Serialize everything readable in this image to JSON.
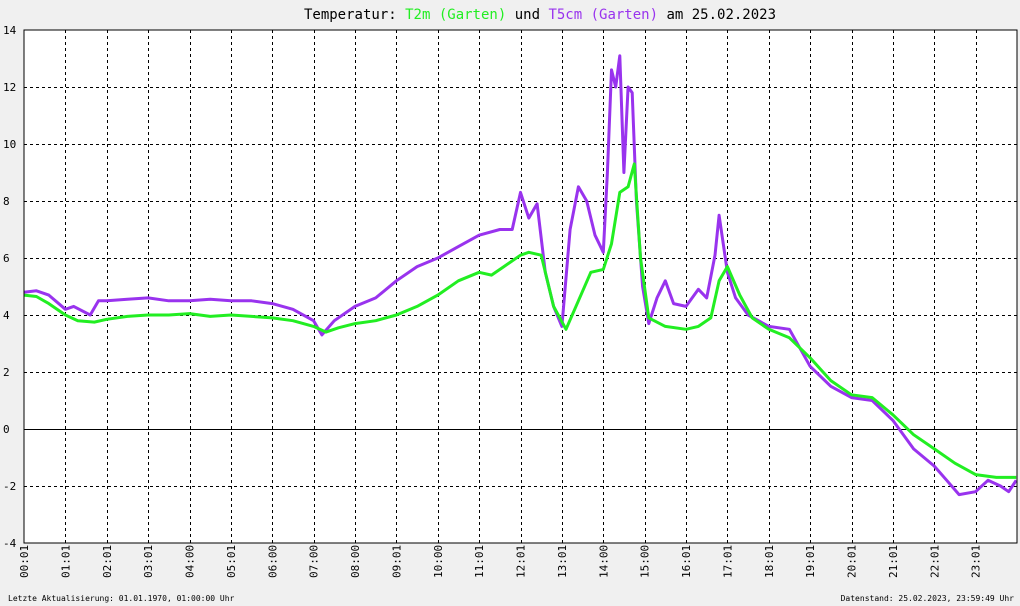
{
  "chart_data": {
    "type": "line",
    "title": {
      "prefix": "Temperatur: ",
      "series1": "T2m (Garten)",
      "middle": " und ",
      "series2": "T5cm (Garten)",
      "suffix": " am 25.02.2023"
    },
    "ylim": [
      -4,
      14
    ],
    "y_ticks": [
      "-4",
      "-2",
      "0",
      "2",
      "4",
      "6",
      "8",
      "10",
      "12",
      "14"
    ],
    "x_ticks": [
      "00:01",
      "01:01",
      "02:01",
      "03:01",
      "04:00",
      "05:01",
      "06:00",
      "07:00",
      "08:00",
      "09:01",
      "10:00",
      "11:01",
      "12:01",
      "13:01",
      "14:00",
      "15:00",
      "16:01",
      "17:01",
      "18:01",
      "19:01",
      "20:01",
      "21:01",
      "22:01",
      "23:01"
    ],
    "grid": true,
    "colors": {
      "T2m": "#22ee22",
      "T5cm": "#9933ee",
      "background": "#ffffff",
      "page": "#f0f0f0"
    },
    "series": [
      {
        "name": "T2m (Garten)",
        "points": [
          [
            0,
            4.7
          ],
          [
            0.3,
            4.65
          ],
          [
            0.6,
            4.4
          ],
          [
            1.0,
            4.0
          ],
          [
            1.3,
            3.8
          ],
          [
            1.7,
            3.75
          ],
          [
            2.0,
            3.85
          ],
          [
            2.5,
            3.95
          ],
          [
            3.0,
            4.0
          ],
          [
            3.5,
            4.0
          ],
          [
            4.0,
            4.05
          ],
          [
            4.5,
            3.95
          ],
          [
            5.0,
            4.0
          ],
          [
            5.5,
            3.95
          ],
          [
            6.0,
            3.9
          ],
          [
            6.5,
            3.8
          ],
          [
            7.0,
            3.6
          ],
          [
            7.3,
            3.4
          ],
          [
            7.6,
            3.55
          ],
          [
            8.0,
            3.7
          ],
          [
            8.5,
            3.8
          ],
          [
            9.0,
            4.0
          ],
          [
            9.5,
            4.3
          ],
          [
            10.0,
            4.7
          ],
          [
            10.5,
            5.2
          ],
          [
            11.0,
            5.5
          ],
          [
            11.3,
            5.4
          ],
          [
            11.6,
            5.7
          ],
          [
            12.0,
            6.1
          ],
          [
            12.2,
            6.2
          ],
          [
            12.5,
            6.1
          ],
          [
            12.8,
            4.3
          ],
          [
            13.1,
            3.5
          ],
          [
            13.4,
            4.5
          ],
          [
            13.7,
            5.5
          ],
          [
            14.0,
            5.6
          ],
          [
            14.2,
            6.5
          ],
          [
            14.4,
            8.3
          ],
          [
            14.6,
            8.5
          ],
          [
            14.75,
            9.3
          ],
          [
            14.9,
            6.0
          ],
          [
            15.1,
            3.9
          ],
          [
            15.5,
            3.6
          ],
          [
            16.0,
            3.5
          ],
          [
            16.3,
            3.6
          ],
          [
            16.6,
            3.9
          ],
          [
            16.8,
            5.2
          ],
          [
            17.0,
            5.7
          ],
          [
            17.3,
            4.7
          ],
          [
            17.6,
            3.9
          ],
          [
            18.0,
            3.5
          ],
          [
            18.5,
            3.2
          ],
          [
            19.0,
            2.5
          ],
          [
            19.5,
            1.7
          ],
          [
            20.0,
            1.2
          ],
          [
            20.5,
            1.1
          ],
          [
            21.0,
            0.5
          ],
          [
            21.5,
            -0.2
          ],
          [
            22.0,
            -0.7
          ],
          [
            22.5,
            -1.2
          ],
          [
            23.0,
            -1.6
          ],
          [
            23.5,
            -1.7
          ],
          [
            23.98,
            -1.7
          ]
        ]
      },
      {
        "name": "T5cm (Garten)",
        "points": [
          [
            0,
            4.8
          ],
          [
            0.3,
            4.85
          ],
          [
            0.6,
            4.7
          ],
          [
            1.0,
            4.2
          ],
          [
            1.2,
            4.3
          ],
          [
            1.6,
            4.0
          ],
          [
            1.8,
            4.5
          ],
          [
            2.0,
            4.5
          ],
          [
            2.5,
            4.55
          ],
          [
            3.0,
            4.6
          ],
          [
            3.5,
            4.5
          ],
          [
            4.0,
            4.5
          ],
          [
            4.5,
            4.55
          ],
          [
            5.0,
            4.5
          ],
          [
            5.5,
            4.5
          ],
          [
            6.0,
            4.4
          ],
          [
            6.5,
            4.2
          ],
          [
            7.0,
            3.8
          ],
          [
            7.2,
            3.3
          ],
          [
            7.5,
            3.8
          ],
          [
            8.0,
            4.3
          ],
          [
            8.5,
            4.6
          ],
          [
            9.0,
            5.2
          ],
          [
            9.5,
            5.7
          ],
          [
            10.0,
            6.0
          ],
          [
            10.5,
            6.4
          ],
          [
            11.0,
            6.8
          ],
          [
            11.5,
            7.0
          ],
          [
            11.8,
            7.0
          ],
          [
            12.0,
            8.3
          ],
          [
            12.2,
            7.4
          ],
          [
            12.4,
            7.9
          ],
          [
            12.6,
            5.5
          ],
          [
            12.8,
            4.3
          ],
          [
            13.0,
            3.6
          ],
          [
            13.2,
            7.0
          ],
          [
            13.4,
            8.5
          ],
          [
            13.6,
            8.0
          ],
          [
            13.8,
            6.8
          ],
          [
            14.0,
            6.2
          ],
          [
            14.1,
            9.0
          ],
          [
            14.2,
            12.6
          ],
          [
            14.3,
            12.0
          ],
          [
            14.4,
            13.1
          ],
          [
            14.5,
            9.0
          ],
          [
            14.6,
            12.0
          ],
          [
            14.7,
            11.8
          ],
          [
            14.8,
            8.0
          ],
          [
            14.95,
            5.0
          ],
          [
            15.1,
            3.7
          ],
          [
            15.3,
            4.6
          ],
          [
            15.5,
            5.2
          ],
          [
            15.7,
            4.4
          ],
          [
            16.0,
            4.3
          ],
          [
            16.3,
            4.9
          ],
          [
            16.5,
            4.6
          ],
          [
            16.7,
            6.1
          ],
          [
            16.8,
            7.5
          ],
          [
            17.0,
            5.5
          ],
          [
            17.2,
            4.6
          ],
          [
            17.5,
            4.0
          ],
          [
            18.0,
            3.6
          ],
          [
            18.5,
            3.5
          ],
          [
            19.0,
            2.2
          ],
          [
            19.5,
            1.5
          ],
          [
            20.0,
            1.1
          ],
          [
            20.5,
            1.0
          ],
          [
            21.0,
            0.3
          ],
          [
            21.5,
            -0.7
          ],
          [
            22.0,
            -1.3
          ],
          [
            22.3,
            -1.8
          ],
          [
            22.6,
            -2.3
          ],
          [
            23.0,
            -2.2
          ],
          [
            23.3,
            -1.8
          ],
          [
            23.6,
            -2.0
          ],
          [
            23.8,
            -2.2
          ],
          [
            23.98,
            -1.8
          ]
        ]
      }
    ]
  },
  "footer": {
    "left": "Letzte Aktualisierung: 01.01.1970, 01:00:00 Uhr",
    "right": "Datenstand: 25.02.2023, 23:59:49 Uhr"
  }
}
